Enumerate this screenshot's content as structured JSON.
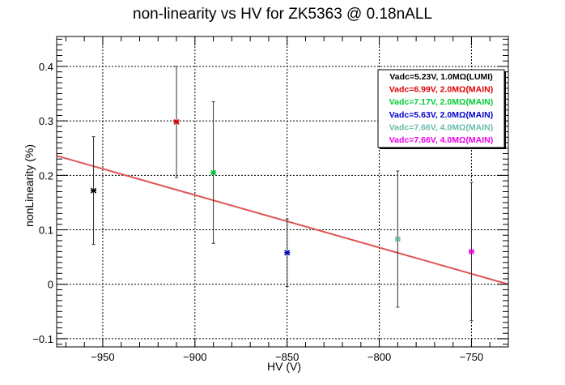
{
  "chart_data": {
    "type": "scatter",
    "title": "non-linearity vs HV for ZK5363 @ 0.18nALL",
    "xlabel": "HV (V)",
    "ylabel": "nonLinearity (%)",
    "xlim": [
      -975,
      -730
    ],
    "ylim": [
      -0.115,
      0.455
    ],
    "x_ticks": [
      -950,
      -900,
      -850,
      -800,
      -750
    ],
    "x_tick_labels": [
      "−950",
      "−900",
      "−850",
      "−800",
      "−750"
    ],
    "y_ticks": [
      -0.1,
      0,
      0.1,
      0.2,
      0.3,
      0.4
    ],
    "y_tick_labels": [
      "−0.1",
      "0",
      "0.1",
      "0.2",
      "0.3",
      "0.4"
    ],
    "grid": true,
    "legend_position": "top-right",
    "series": [
      {
        "name": "Vadc=5.23V, 1.0MΩ(LUMI)",
        "color": "#000000",
        "x": -955,
        "y": 0.172,
        "yerr": 0.099
      },
      {
        "name": "Vadc=6.99V, 2.0MΩ(MAIN)",
        "color": "#dd0000",
        "x": -910,
        "y": 0.298,
        "yerr": 0.102
      },
      {
        "name": "Vadc=7.17V, 2.0MΩ(MAIN)",
        "color": "#00cc33",
        "x": -890,
        "y": 0.205,
        "yerr": 0.13
      },
      {
        "name": "Vadc=5.63V, 2.0MΩ(MAIN)",
        "color": "#0000cc",
        "x": -850,
        "y": 0.058,
        "yerr": 0.062
      },
      {
        "name": "Vadc=7.66V, 4.0MΩ(MAIN)",
        "color": "#66bbaa",
        "x": -790,
        "y": 0.083,
        "yerr": 0.125
      },
      {
        "name": "Vadc=7.66V, 4.0MΩ(MAIN)",
        "color": "#ee00ee",
        "x": -750,
        "y": 0.06,
        "yerr": 0.127
      }
    ],
    "fit_line": {
      "color": "#e05555",
      "x": [
        -975,
        -730
      ],
      "y": [
        0.236,
        0.0
      ]
    }
  }
}
